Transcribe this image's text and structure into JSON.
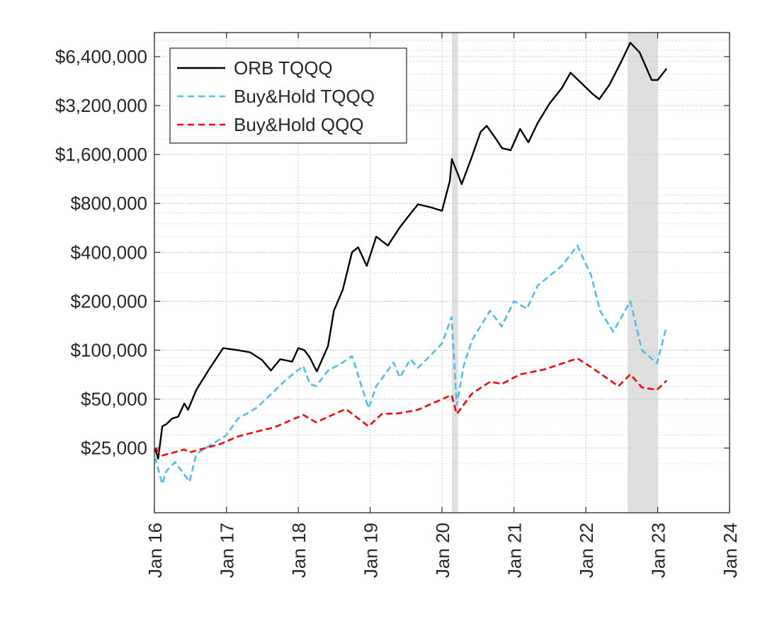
{
  "chart_data": {
    "type": "line",
    "title": "",
    "xlabel": "",
    "ylabel": "",
    "yscale": "log",
    "xlim": [
      "2016-01-01",
      "2024-01-01"
    ],
    "ylim": [
      10000,
      9000000
    ],
    "grid": true,
    "minor_grid": true,
    "legend_position": "top-left",
    "x_ticks": [
      "Jan 16",
      "Jan 17",
      "Jan 18",
      "Jan 19",
      "Jan 20",
      "Jan 21",
      "Jan 22",
      "Jan 23",
      "Jan 24"
    ],
    "y_ticks": [
      "$25,000",
      "$50,000",
      "$100,000",
      "$200,000",
      "$400,000",
      "$800,000",
      "$1,600,000",
      "$3,200,000",
      "$6,400,000"
    ],
    "shaded_periods": [
      {
        "start": "2020-02-20",
        "end": "2020-03-23"
      },
      {
        "start": "2022-08-01",
        "end": "2023-01-01"
      }
    ],
    "series": [
      {
        "name": "ORB TQQQ",
        "color": "#000000",
        "style": "solid",
        "points": [
          [
            "2016-01-04",
            25000
          ],
          [
            "2016-01-20",
            21500
          ],
          [
            "2016-02-10",
            34000
          ],
          [
            "2016-03-01",
            35000
          ],
          [
            "2016-04-01",
            38000
          ],
          [
            "2016-05-01",
            39000
          ],
          [
            "2016-06-01",
            47000
          ],
          [
            "2016-06-20",
            43000
          ],
          [
            "2016-08-01",
            57000
          ],
          [
            "2016-10-01",
            75000
          ],
          [
            "2016-12-15",
            103000
          ],
          [
            "2017-03-01",
            100000
          ],
          [
            "2017-05-01",
            97000
          ],
          [
            "2017-07-01",
            87000
          ],
          [
            "2017-08-15",
            75000
          ],
          [
            "2017-10-01",
            88000
          ],
          [
            "2017-12-01",
            85000
          ],
          [
            "2018-01-01",
            103000
          ],
          [
            "2018-02-01",
            100000
          ],
          [
            "2018-03-01",
            90000
          ],
          [
            "2018-04-05",
            74000
          ],
          [
            "2018-06-01",
            106000
          ],
          [
            "2018-07-01",
            175000
          ],
          [
            "2018-08-15",
            235000
          ],
          [
            "2018-10-01",
            400000
          ],
          [
            "2018-11-01",
            430000
          ],
          [
            "2018-12-15",
            330000
          ],
          [
            "2019-02-01",
            500000
          ],
          [
            "2019-04-01",
            440000
          ],
          [
            "2019-06-01",
            570000
          ],
          [
            "2019-08-01",
            710000
          ],
          [
            "2019-09-01",
            790000
          ],
          [
            "2019-11-01",
            760000
          ],
          [
            "2020-01-01",
            720000
          ],
          [
            "2020-02-10",
            1100000
          ],
          [
            "2020-02-20",
            1500000
          ],
          [
            "2020-03-23",
            1200000
          ],
          [
            "2020-04-10",
            1050000
          ],
          [
            "2020-06-01",
            1550000
          ],
          [
            "2020-07-15",
            2200000
          ],
          [
            "2020-08-15",
            2400000
          ],
          [
            "2020-10-01",
            2000000
          ],
          [
            "2020-11-01",
            1750000
          ],
          [
            "2020-12-15",
            1700000
          ],
          [
            "2021-02-01",
            2300000
          ],
          [
            "2021-03-15",
            1900000
          ],
          [
            "2021-05-01",
            2500000
          ],
          [
            "2021-07-01",
            3300000
          ],
          [
            "2021-09-01",
            4100000
          ],
          [
            "2021-10-15",
            5100000
          ],
          [
            "2021-12-01",
            4500000
          ],
          [
            "2022-02-01",
            3800000
          ],
          [
            "2022-03-10",
            3500000
          ],
          [
            "2022-05-01",
            4300000
          ],
          [
            "2022-07-01",
            6000000
          ],
          [
            "2022-08-15",
            7800000
          ],
          [
            "2022-10-01",
            6800000
          ],
          [
            "2022-12-01",
            4600000
          ],
          [
            "2023-01-01",
            4600000
          ],
          [
            "2023-02-15",
            5400000
          ]
        ]
      },
      {
        "name": "Buy&Hold TQQQ",
        "color": "#4dbeee",
        "style": "dashed",
        "points": [
          [
            "2016-01-04",
            22000
          ],
          [
            "2016-02-10",
            15000
          ],
          [
            "2016-03-01",
            18000
          ],
          [
            "2016-04-15",
            20500
          ],
          [
            "2016-06-27",
            15500
          ],
          [
            "2016-08-01",
            23000
          ],
          [
            "2016-11-01",
            27000
          ],
          [
            "2017-01-01",
            30000
          ],
          [
            "2017-03-01",
            38000
          ],
          [
            "2017-06-01",
            44000
          ],
          [
            "2017-09-01",
            56000
          ],
          [
            "2017-11-01",
            66000
          ],
          [
            "2018-01-26",
            80000
          ],
          [
            "2018-03-01",
            62000
          ],
          [
            "2018-04-01",
            60000
          ],
          [
            "2018-06-01",
            75000
          ],
          [
            "2018-08-01",
            82000
          ],
          [
            "2018-10-01",
            92000
          ],
          [
            "2018-11-01",
            70000
          ],
          [
            "2018-12-24",
            44000
          ],
          [
            "2019-02-01",
            60000
          ],
          [
            "2019-04-30",
            84000
          ],
          [
            "2019-06-01",
            68000
          ],
          [
            "2019-07-25",
            88000
          ],
          [
            "2019-09-01",
            78000
          ],
          [
            "2019-11-01",
            92000
          ],
          [
            "2020-01-01",
            110000
          ],
          [
            "2020-02-19",
            160000
          ],
          [
            "2020-03-16",
            46000
          ],
          [
            "2020-04-20",
            80000
          ],
          [
            "2020-06-01",
            115000
          ],
          [
            "2020-09-01",
            175000
          ],
          [
            "2020-10-30",
            140000
          ],
          [
            "2021-01-01",
            200000
          ],
          [
            "2021-03-08",
            180000
          ],
          [
            "2021-05-01",
            250000
          ],
          [
            "2021-09-01",
            330000
          ],
          [
            "2021-11-19",
            440000
          ],
          [
            "2022-01-27",
            290000
          ],
          [
            "2022-03-14",
            175000
          ],
          [
            "2022-05-20",
            130000
          ],
          [
            "2022-08-15",
            200000
          ],
          [
            "2022-10-13",
            100000
          ],
          [
            "2022-12-28",
            83000
          ],
          [
            "2023-02-15",
            140000
          ]
        ]
      },
      {
        "name": "Buy&Hold QQQ",
        "color": "#ff0000",
        "style": "dashed",
        "points": [
          [
            "2016-01-04",
            25000
          ],
          [
            "2016-02-10",
            22500
          ],
          [
            "2016-06-01",
            24500
          ],
          [
            "2016-06-27",
            23500
          ],
          [
            "2016-12-01",
            26500
          ],
          [
            "2017-03-01",
            29500
          ],
          [
            "2017-06-01",
            31500
          ],
          [
            "2017-09-01",
            33500
          ],
          [
            "2018-01-26",
            40000
          ],
          [
            "2018-04-01",
            36000
          ],
          [
            "2018-08-30",
            43500
          ],
          [
            "2018-12-24",
            34000
          ],
          [
            "2019-03-01",
            40500
          ],
          [
            "2019-06-01",
            41000
          ],
          [
            "2019-09-01",
            43000
          ],
          [
            "2020-02-19",
            53000
          ],
          [
            "2020-03-16",
            40500
          ],
          [
            "2020-06-01",
            54000
          ],
          [
            "2020-09-01",
            64000
          ],
          [
            "2020-11-01",
            62000
          ],
          [
            "2021-02-01",
            71000
          ],
          [
            "2021-06-01",
            76000
          ],
          [
            "2021-11-19",
            89000
          ],
          [
            "2022-02-01",
            78000
          ],
          [
            "2022-06-15",
            60000
          ],
          [
            "2022-08-15",
            71000
          ],
          [
            "2022-10-13",
            59000
          ],
          [
            "2022-12-28",
            57000
          ],
          [
            "2023-02-15",
            65000
          ]
        ]
      }
    ]
  }
}
